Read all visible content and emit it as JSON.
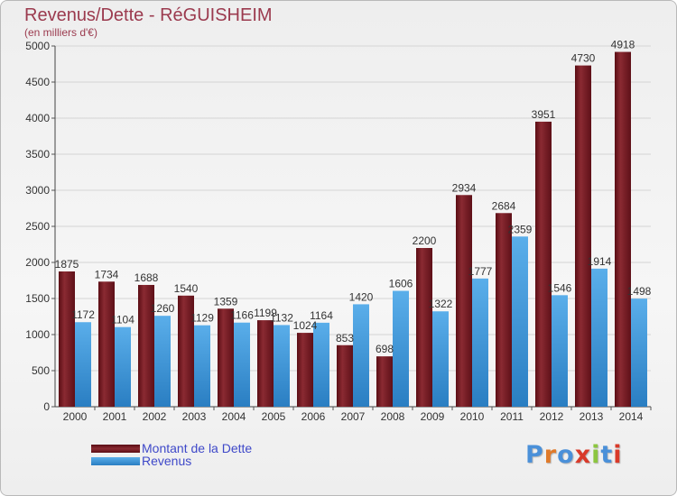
{
  "header": {
    "title": "Revenus/Dette - RéGUISHEIM",
    "subtitle": "(en milliers d'€)"
  },
  "legend": {
    "items": [
      {
        "label": "Montant de la Dette",
        "color": "#7a1a22"
      },
      {
        "label": "Revenus",
        "color": "#4a9ee0"
      }
    ]
  },
  "logo": {
    "text": "Proxiti",
    "letter_colors": [
      "#4a90d9",
      "#e07a2a",
      "#4a90d9",
      "#d93a2a",
      "#8cc63f",
      "#4a90d9",
      "#d93a2a"
    ]
  },
  "chart_data": {
    "type": "bar",
    "categories": [
      "2000",
      "2001",
      "2002",
      "2003",
      "2004",
      "2005",
      "2006",
      "2007",
      "2008",
      "2009",
      "2010",
      "2011",
      "2012",
      "2013",
      "2014"
    ],
    "series": [
      {
        "name": "Montant de la Dette",
        "color": "#7a1a22",
        "values": [
          1875,
          1734,
          1688,
          1540,
          1359,
          1199,
          1024,
          853,
          698,
          2200,
          2934,
          2684,
          3951,
          4730,
          4918
        ]
      },
      {
        "name": "Revenus",
        "color": "#4a9ee0",
        "values": [
          1172,
          1104,
          1260,
          1129,
          1166,
          1132,
          1164,
          1420,
          1606,
          1322,
          1777,
          2359,
          1546,
          1914,
          1498
        ]
      }
    ],
    "ylim": [
      0,
      5000
    ],
    "yticks": [
      0,
      500,
      1000,
      1500,
      2000,
      2500,
      3000,
      3500,
      4000,
      4500,
      5000
    ],
    "grid": true
  }
}
